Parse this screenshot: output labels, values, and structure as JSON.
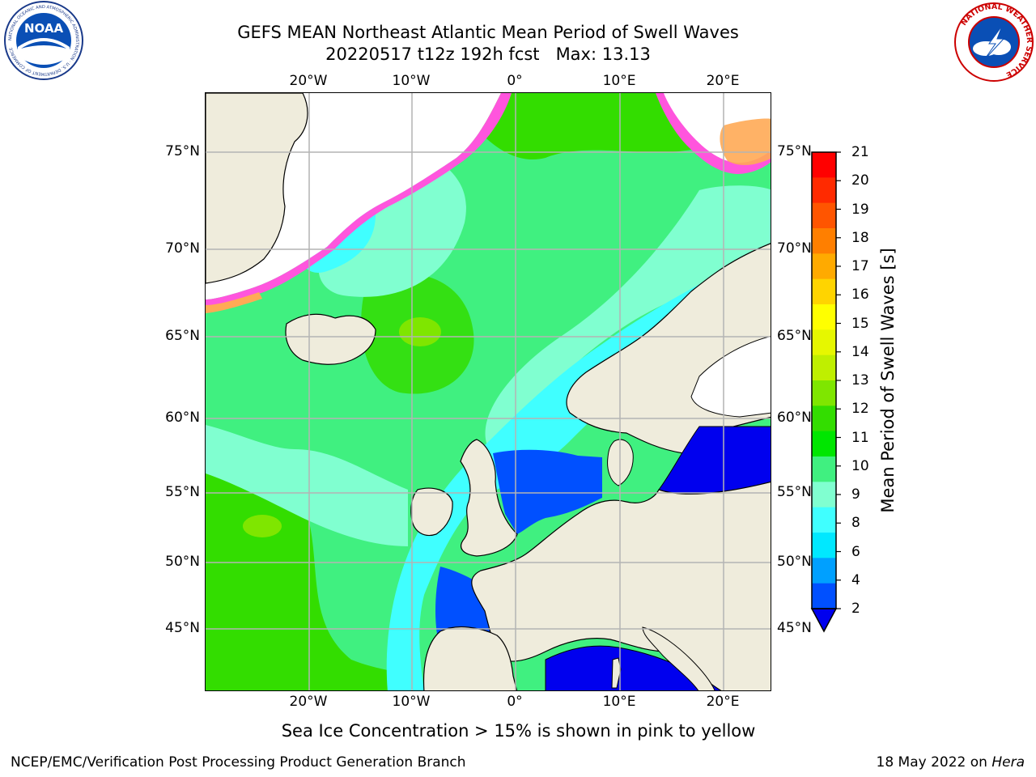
{
  "title_line1": "GEFS MEAN Northeast Atlantic Mean Period of Swell Waves",
  "title_line2": "20220517 t12z 192h fcst   Max: 13.13",
  "longitude_labels": [
    "20°W",
    "10°W",
    "0°",
    "10°E",
    "20°E"
  ],
  "latitude_labels": [
    "75°N",
    "70°N",
    "65°N",
    "60°N",
    "55°N",
    "50°N",
    "45°N"
  ],
  "colorbar": {
    "label": "Mean Period of Swell Waves [s]",
    "ticks": [
      "21",
      "20",
      "19",
      "18",
      "17",
      "16",
      "15",
      "14",
      "13",
      "12",
      "11",
      "10",
      "9",
      "8",
      "6",
      "4",
      "2"
    ],
    "colors": [
      "#ff0000",
      "#ff2a00",
      "#ff5500",
      "#ff7f00",
      "#ffaa00",
      "#ffd400",
      "#ffff00",
      "#e6f700",
      "#bfef00",
      "#7fe600",
      "#33dd00",
      "#00e600",
      "#40f080",
      "#80ffd0",
      "#40ffff",
      "#00e8ff",
      "#00a0ff",
      "#0050ff"
    ],
    "extend_color": "#0000ee"
  },
  "map_colors": {
    "land": "#efecdc",
    "ice_free_white": "#ffffff",
    "swell_long": "#33dd00",
    "swell_green": "#40f080",
    "swell_mid": "#80ffd0",
    "swell_cyan": "#40ffff",
    "swell_short": "#0050ff",
    "swell_shortest": "#0000ee",
    "ice_pink": "#ff55dd",
    "ice_orange": "#ffaa55",
    "grid": "#b4b4b4"
  },
  "subtitle": "Sea Ice Concentration > 15% is shown in pink to yellow",
  "footer_left": "NCEP/EMC/Verification Post Processing Product Generation Branch",
  "footer_right_prefix": "18 May 2022 on ",
  "footer_right_host": "Hera",
  "logos": {
    "noaa": "NOAA",
    "noaa_ring": "NATIONAL OCEANIC AND ATMOSPHERIC ADMINISTRATION · U.S. DEPARTMENT OF COMMERCE",
    "nws_ring": "NATIONAL WEATHER SERVICE"
  }
}
